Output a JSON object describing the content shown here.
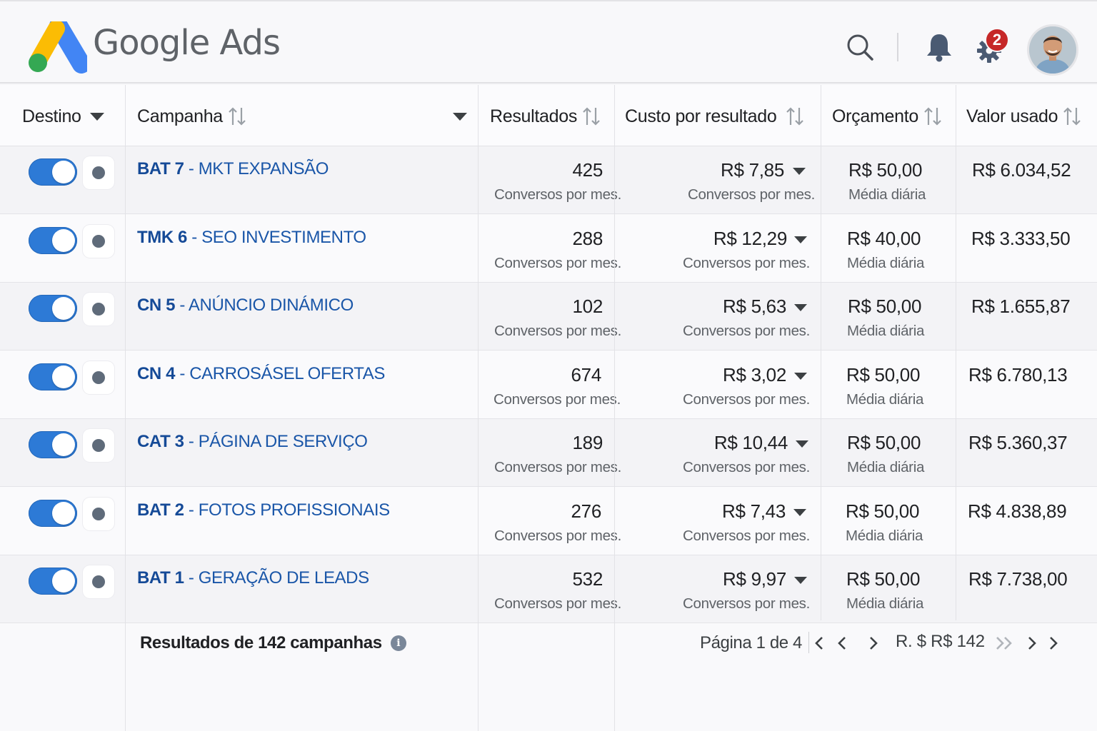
{
  "app": {
    "title": "Google Ads",
    "notification_count": "2"
  },
  "icons": {
    "search": "search-icon",
    "bell": "bell-icon",
    "gear": "gear-icon",
    "info": "info-icon"
  },
  "colors": {
    "toggle_on": "#2d7ad6",
    "link": "#1a56a8",
    "badge": "#c62828",
    "logo_blue": "#4285f4",
    "logo_yellow": "#fbbc04",
    "logo_green": "#34a853"
  },
  "columns": {
    "destino": "Destino",
    "campanha": "Campanha",
    "resultados": "Resultados",
    "custo": "Custo por resultado",
    "orcamento": "Orçamento",
    "valor": "Valor usado"
  },
  "rows": [
    {
      "code": "BAT 7",
      "name": " - MKT EXPANSÃO",
      "results": "425",
      "results_sub": "Conversos por mes.",
      "cost": "R$ 7,85",
      "cost_sub": "Conversos por mes.",
      "budget": "R$ 50,00",
      "budget_sub": "Média diária",
      "spent": "R$ 6.034,52",
      "enabled": true
    },
    {
      "code": "TMK 6",
      "name": " - SEO INVESTIMENTO",
      "results": "288",
      "results_sub": "Conversos por mes.",
      "cost": "R$ 12,29",
      "cost_sub": "Conversos por mes.",
      "budget": "R$ 40,00",
      "budget_sub": "Média diária",
      "spent": "R$ 3.333,50",
      "enabled": true
    },
    {
      "code": "CN 5",
      "name": " - ANÚNCIO DINÁMICO",
      "results": "102",
      "results_sub": "Conversos por mes.",
      "cost": "R$ 5,63",
      "cost_sub": "Conversos por mes.",
      "budget": "R$ 50,00",
      "budget_sub": "Média diária",
      "spent": "R$ 1.655,87",
      "enabled": true
    },
    {
      "code": "CN 4",
      "name": " - CARROSÁSEL OFERTAS",
      "results": "674",
      "results_sub": "Conversos por mes.",
      "cost": "R$ 3,02",
      "cost_sub": "Conversos por mes.",
      "budget": "R$ 50,00",
      "budget_sub": "Média diária",
      "spent": "R$ 6.780,13",
      "enabled": true
    },
    {
      "code": "CAT 3",
      "name": " - PÁGINA DE SERVIÇO",
      "results": "189",
      "results_sub": "Conversos por mes.",
      "cost": "R$ 10,44",
      "cost_sub": "Conversos por mes.",
      "budget": "R$ 50,00",
      "budget_sub": "Média diária",
      "spent": "R$ 5.360,37",
      "enabled": true
    },
    {
      "code": "BAT 2",
      "name": " - FOTOS PROFISSIONAIS",
      "results": "276",
      "results_sub": "Conversos por mes.",
      "cost": "R$ 7,43",
      "cost_sub": "Conversos por mes.",
      "budget": "R$ 50,00",
      "budget_sub": "Média diária",
      "spent": "R$ 4.838,89",
      "enabled": true
    },
    {
      "code": "BAT 1",
      "name": " - GERAÇÃO DE LEADS",
      "results": "532",
      "results_sub": "Conversos por mes.",
      "cost": "R$ 9,97",
      "cost_sub": "Conversos por mes.",
      "budget": "R$ 50,00",
      "budget_sub": "Média diária",
      "spent": "R$ 7.738,00",
      "enabled": true
    }
  ],
  "footer": {
    "total": "Resultados de 142 campanhas",
    "page_info": "Página 1 de 4",
    "page_input": "R.  $ R$ 142"
  }
}
